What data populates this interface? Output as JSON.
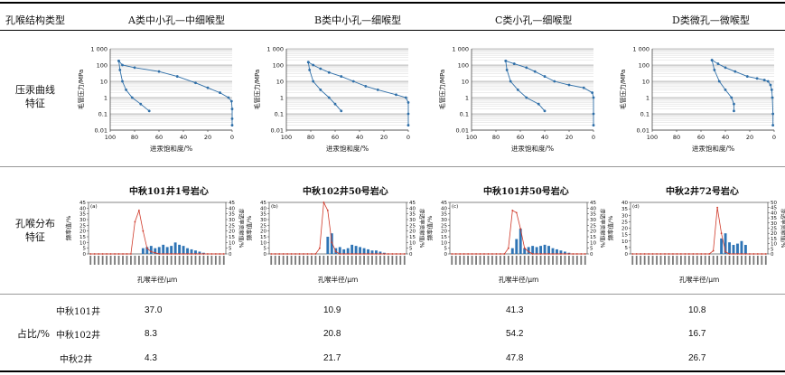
{
  "header": {
    "col0": "孔喉结构类型",
    "cols": [
      "A类中小孔—中细喉型",
      "B类中小孔—细喉型",
      "C类小孔—细喉型",
      "D类微孔—微喉型"
    ]
  },
  "rows": {
    "capillary_label": "压汞曲线\n特征",
    "distribution_label": "孔喉分布\n特征",
    "proportion_label": "占比/%"
  },
  "capillary_axes": {
    "ylabel": "毛管压力/MPa",
    "xlabel": "进汞饱和度/%",
    "yticks": [
      "1 000",
      "100",
      "10",
      "1",
      "0.1",
      "0.01"
    ],
    "xticks": [
      "100",
      "80",
      "60",
      "40",
      "20",
      "0"
    ]
  },
  "distribution_axes": {
    "xlabel": "孔喉半径/μm",
    "left_label": "频率值/%",
    "right_label": "渗透率贡献值/%",
    "panel_letters": [
      "(a)",
      "(b)",
      "(c)",
      "(d)"
    ],
    "titles": [
      "中秋101井1号岩心",
      "中秋102井50号岩心",
      "中秋101井50号岩心",
      "中秋2井72号岩心"
    ]
  },
  "proportions": {
    "wells": [
      "中秋101井",
      "中秋102井",
      "中秋2井"
    ],
    "values": [
      [
        "37.0",
        "10.9",
        "41.3",
        "10.8"
      ],
      [
        "8.3",
        "20.8",
        "54.2",
        "16.7"
      ],
      [
        "4.3",
        "21.7",
        "47.8",
        "26.7"
      ]
    ]
  },
  "chart_data": [
    {
      "type": "line",
      "title": "A类中小孔—中细喉型",
      "xlabel": "进汞饱和度/%",
      "ylabel": "毛管压力/MPa",
      "xlim": [
        100,
        0
      ],
      "ylim": [
        0.01,
        1000
      ],
      "log_y": true,
      "series": [
        {
          "values_x": [
            68,
            75,
            82,
            87,
            90,
            92,
            93
          ],
          "values_y": [
            0.15,
            0.4,
            1,
            3,
            10,
            50,
            180
          ]
        },
        {
          "values_x": [
            93,
            90,
            80,
            60,
            45,
            30,
            20,
            10,
            3,
            0.5,
            0,
            0,
            0
          ],
          "values_y": [
            180,
            100,
            70,
            40,
            20,
            8,
            4,
            2,
            1,
            0.6,
            0.2,
            0.05,
            0.02
          ]
        }
      ]
    },
    {
      "type": "line",
      "title": "B类中小孔—细喉型",
      "xlabel": "进汞饱和度/%",
      "ylabel": "毛管压力/MPa",
      "xlim": [
        100,
        0
      ],
      "ylim": [
        0.01,
        1000
      ],
      "log_y": true,
      "series": [
        {
          "values_x": [
            55,
            60,
            65,
            72,
            78,
            81,
            82
          ],
          "values_y": [
            0.15,
            0.4,
            1,
            3,
            10,
            50,
            150
          ]
        },
        {
          "values_x": [
            82,
            78,
            72,
            65,
            55,
            45,
            35,
            25,
            10,
            2,
            0,
            0,
            0
          ],
          "values_y": [
            150,
            100,
            60,
            35,
            20,
            10,
            5,
            3,
            1.5,
            1,
            0.5,
            0.1,
            0.02
          ]
        }
      ]
    },
    {
      "type": "line",
      "title": "C类小孔—细喉型",
      "xlabel": "进汞饱和度/%",
      "ylabel": "毛管压力/MPa",
      "xlim": [
        100,
        0
      ],
      "ylim": [
        0.01,
        1000
      ],
      "log_y": true,
      "series": [
        {
          "values_x": [
            40,
            45,
            55,
            62,
            68,
            71,
            72
          ],
          "values_y": [
            0.15,
            0.4,
            1,
            3,
            10,
            50,
            180
          ]
        },
        {
          "values_x": [
            72,
            65,
            55,
            48,
            40,
            32,
            20,
            8,
            1,
            0,
            0,
            0
          ],
          "values_y": [
            180,
            120,
            70,
            40,
            20,
            10,
            6,
            4,
            2,
            1,
            0.1,
            0.02
          ]
        }
      ]
    },
    {
      "type": "line",
      "title": "D类微孔—微喉型",
      "xlabel": "进汞饱和度/%",
      "ylabel": "毛管压力/MPa",
      "xlim": [
        100,
        0
      ],
      "ylim": [
        0.01,
        1000
      ],
      "log_y": true,
      "series": [
        {
          "values_x": [
            33,
            33,
            35,
            40,
            45,
            49,
            51
          ],
          "values_y": [
            0.15,
            0.4,
            1,
            3,
            10,
            50,
            200
          ]
        },
        {
          "values_x": [
            51,
            46,
            40,
            32,
            22,
            14,
            8,
            5,
            3,
            2,
            1.5,
            1,
            1
          ],
          "values_y": [
            200,
            120,
            70,
            40,
            20,
            15,
            12,
            10,
            6,
            3,
            1,
            0.1,
            0.02
          ]
        }
      ]
    },
    {
      "type": "bar",
      "title": "中秋101井1号岩心",
      "xlabel": "孔喉半径/μm",
      "ylabel": "频率值/%",
      "y2label": "渗透率贡献值/%",
      "ylim": [
        0,
        45
      ],
      "y2lim": [
        0,
        45
      ],
      "yticks": [
        0,
        5,
        10,
        15,
        20,
        25,
        30,
        35,
        40,
        45
      ],
      "values": [
        0,
        0,
        0,
        0,
        0,
        0,
        0,
        0,
        0,
        0,
        0,
        0,
        0,
        5,
        6,
        7,
        5,
        6,
        8,
        6,
        7,
        10,
        8,
        7,
        5,
        4,
        3,
        2,
        1,
        0,
        0,
        0,
        0,
        0
      ],
      "line": [
        0,
        0,
        0,
        0,
        0,
        0,
        0,
        0,
        0,
        0,
        0,
        28,
        38,
        20,
        5,
        2,
        1,
        0,
        0,
        0,
        0,
        0,
        0,
        0,
        0,
        0,
        0,
        0,
        0,
        0,
        0,
        0,
        0,
        0
      ]
    },
    {
      "type": "bar",
      "title": "中秋102井50号岩心",
      "xlabel": "孔喉半径/μm",
      "ylabel": "频率值/%",
      "y2label": "渗透率贡献值/%",
      "ylim": [
        0,
        45
      ],
      "y2lim": [
        0,
        45
      ],
      "yticks": [
        0,
        5,
        10,
        15,
        20,
        25,
        30,
        35,
        40,
        45
      ],
      "values": [
        0,
        0,
        0,
        0,
        0,
        0,
        0,
        0,
        0,
        0,
        0,
        0,
        0,
        0,
        15,
        18,
        5,
        6,
        4,
        5,
        8,
        7,
        6,
        5,
        4,
        3,
        3,
        2,
        1,
        0,
        0,
        0,
        0,
        0
      ],
      "line": [
        0,
        0,
        0,
        0,
        0,
        0,
        0,
        0,
        0,
        0,
        0,
        0,
        5,
        45,
        38,
        10,
        2,
        0,
        0,
        0,
        0,
        0,
        0,
        0,
        0,
        0,
        0,
        0,
        0,
        0,
        0,
        0,
        0,
        0
      ]
    },
    {
      "type": "bar",
      "title": "中秋101井50号岩心",
      "xlabel": "孔喉半径/μm",
      "ylabel": "频率值/%",
      "y2label": "渗透率贡献值/%",
      "ylim": [
        0,
        45
      ],
      "y2lim": [
        0,
        45
      ],
      "yticks": [
        0,
        5,
        10,
        15,
        20,
        25,
        30,
        35,
        40,
        45
      ],
      "values": [
        0,
        0,
        0,
        0,
        0,
        0,
        0,
        0,
        0,
        0,
        0,
        0,
        0,
        0,
        0,
        5,
        13,
        22,
        5,
        6,
        7,
        6,
        7,
        8,
        7,
        5,
        4,
        3,
        2,
        1,
        0,
        0,
        0,
        0
      ],
      "line": [
        0,
        0,
        0,
        0,
        0,
        0,
        0,
        0,
        0,
        0,
        0,
        0,
        0,
        0,
        5,
        38,
        36,
        22,
        5,
        2,
        0,
        0,
        0,
        0,
        0,
        0,
        0,
        0,
        0,
        0,
        0,
        0,
        0,
        0
      ]
    },
    {
      "type": "bar",
      "title": "中秋2井72号岩心",
      "xlabel": "孔喉半径/μm",
      "ylabel": "频率值/%",
      "y2label": "渗透率贡献值/%",
      "ylim": [
        0,
        40
      ],
      "y2lim": [
        0,
        50
      ],
      "yticks": [
        0,
        5,
        10,
        15,
        20,
        25,
        30,
        35,
        40
      ],
      "y2ticks": [
        0,
        5,
        10,
        15,
        20,
        25,
        30,
        35,
        40,
        45,
        50
      ],
      "values": [
        0,
        0,
        0,
        0,
        0,
        0,
        0,
        0,
        0,
        0,
        0,
        0,
        0,
        0,
        0,
        0,
        0,
        0,
        0,
        0,
        0,
        0,
        12,
        16,
        9,
        7,
        8,
        10,
        7,
        0,
        0,
        0,
        0,
        0
      ],
      "line": [
        0,
        0,
        0,
        0,
        0,
        0,
        0,
        0,
        0,
        0,
        0,
        0,
        0,
        0,
        0,
        0,
        0,
        0,
        0,
        0,
        3,
        45,
        20,
        2,
        0,
        0,
        0,
        0,
        0,
        0,
        0,
        0,
        0,
        0
      ]
    }
  ]
}
